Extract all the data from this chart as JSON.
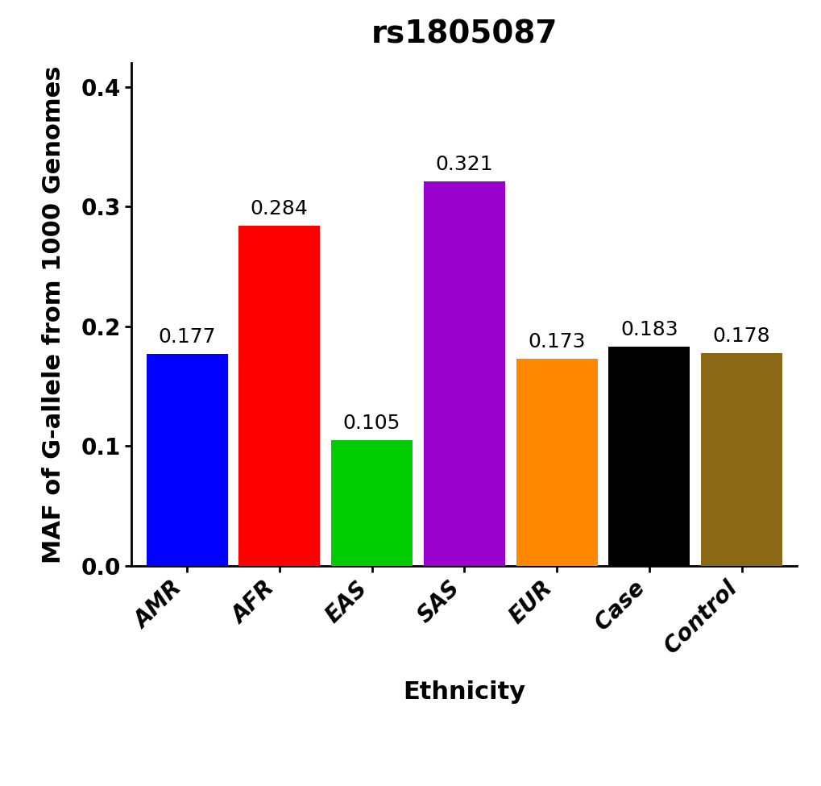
{
  "title": "rs1805087",
  "xlabel": "Ethnicity",
  "ylabel": "MAF of G-allele from 1000 Genomes",
  "categories": [
    "AMR",
    "AFR",
    "EAS",
    "SAS",
    "EUR",
    "Case",
    "Control"
  ],
  "values": [
    0.177,
    0.284,
    0.105,
    0.321,
    0.173,
    0.183,
    0.178
  ],
  "bar_colors": [
    "#0000FF",
    "#FF0000",
    "#00CC00",
    "#9900CC",
    "#FF8800",
    "#000000",
    "#8B6914"
  ],
  "ylim": [
    0,
    0.42
  ],
  "yticks": [
    0.0,
    0.1,
    0.2,
    0.3,
    0.4
  ],
  "background_color": "#FFFFFF",
  "title_fontsize": 28,
  "label_fontsize": 22,
  "tick_fontsize": 20,
  "annotation_fontsize": 18,
  "bar_width": 0.88
}
